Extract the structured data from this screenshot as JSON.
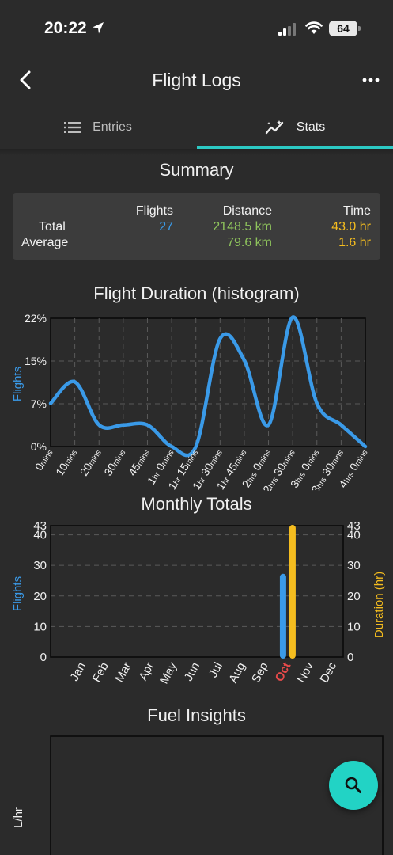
{
  "status": {
    "time": "20:22",
    "battery": "64"
  },
  "header": {
    "title": "Flight Logs"
  },
  "tabs": [
    {
      "label": "Entries"
    },
    {
      "label": "Stats"
    }
  ],
  "summary": {
    "title": "Summary",
    "col_flights": "Flights",
    "col_distance": "Distance",
    "col_time": "Time",
    "row_total": "Total",
    "row_average": "Average",
    "total_flights": "27",
    "total_distance": "2148.5 km",
    "total_time": "43.0 hr",
    "avg_distance": "79.6 km",
    "avg_time": "1.6 hr"
  },
  "colors": {
    "accent": "#2cc9c4",
    "flights": "#3a9ae8",
    "distance": "#8ec35c",
    "time": "#f5bd1f",
    "highlight_month": "#e84a4a",
    "fab": "#22d3c5"
  },
  "icons": {
    "back": "chevron-left-icon",
    "more": "more-horizontal-icon",
    "entries": "list-icon",
    "stats": "chart-line-icon",
    "fab": "search-icon"
  },
  "chart_data": [
    {
      "type": "line",
      "title": "Flight Duration (histogram)",
      "ylabel": "Flights",
      "y_ticks": [
        "22%",
        "15%",
        "7%",
        "0%"
      ],
      "ylim": [
        0,
        22
      ],
      "x_tick_labels": [
        [
          "0",
          "mins"
        ],
        [
          "10",
          "mins"
        ],
        [
          "20",
          "mins"
        ],
        [
          "30",
          "mins"
        ],
        [
          "45",
          "mins"
        ],
        [
          "1",
          "hr",
          " 0",
          "mins"
        ],
        [
          "1",
          "hr",
          " 15",
          "mins"
        ],
        [
          "1",
          "hr",
          " 30",
          "mins"
        ],
        [
          "1",
          "hr",
          " 45",
          "mins"
        ],
        [
          "2",
          "hrs",
          " 0",
          "mins"
        ],
        [
          "2",
          "hrs",
          " 30",
          "mins"
        ],
        [
          "3",
          "hrs",
          " 0",
          "mins"
        ],
        [
          "3",
          "hrs",
          " 30",
          "mins"
        ],
        [
          "4",
          "hrs",
          " 0",
          "mins"
        ]
      ],
      "values": [
        7.4,
        11.1,
        3.7,
        3.7,
        3.7,
        0,
        0,
        18.5,
        14.8,
        3.7,
        22.2,
        7.4,
        3.7,
        0
      ],
      "grid": true
    },
    {
      "type": "bar",
      "title": "Monthly Totals",
      "categories": [
        "Jan",
        "Feb",
        "Mar",
        "Apr",
        "May",
        "Jun",
        "Jul",
        "Aug",
        "Sep",
        "Oct",
        "Nov",
        "Dec"
      ],
      "highlight_category": "Oct",
      "ylabel_left": "Flights",
      "ylabel_right": "Duration (hr)",
      "ylim": [
        0,
        43
      ],
      "y_ticks": [
        0,
        10,
        20,
        30,
        40,
        43
      ],
      "series": [
        {
          "name": "Flights",
          "values": [
            0,
            0,
            0,
            0,
            0,
            0,
            0,
            0,
            0,
            27,
            0,
            0
          ]
        },
        {
          "name": "Duration (hr)",
          "values": [
            0,
            0,
            0,
            0,
            0,
            0,
            0,
            0,
            0,
            43.0,
            0,
            0
          ]
        }
      ],
      "grid": true
    },
    {
      "type": "scatter",
      "title": "Fuel Insights",
      "ylabel": "L/hr",
      "series": []
    }
  ]
}
